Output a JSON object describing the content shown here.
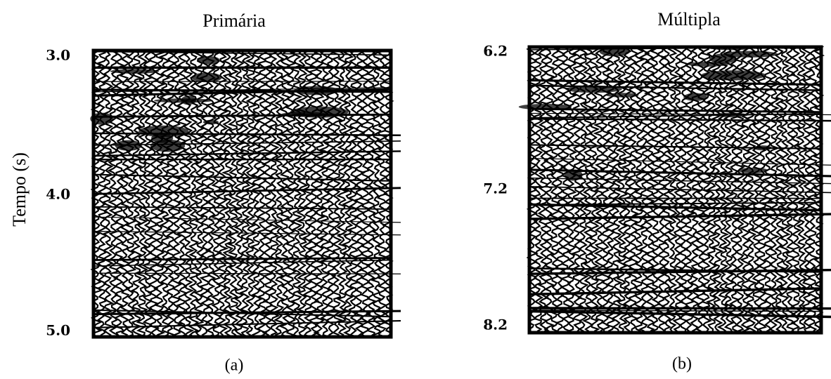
{
  "panels": [
    {
      "title": "Primária",
      "ticks": [
        "3.0",
        "4.0",
        "5.0"
      ],
      "caption": "(a)"
    },
    {
      "title": "Múltipla",
      "ticks": [
        "6.2",
        "7.2",
        "8.2"
      ],
      "caption": "(b)"
    }
  ],
  "y_label": "Tempo (s)"
}
